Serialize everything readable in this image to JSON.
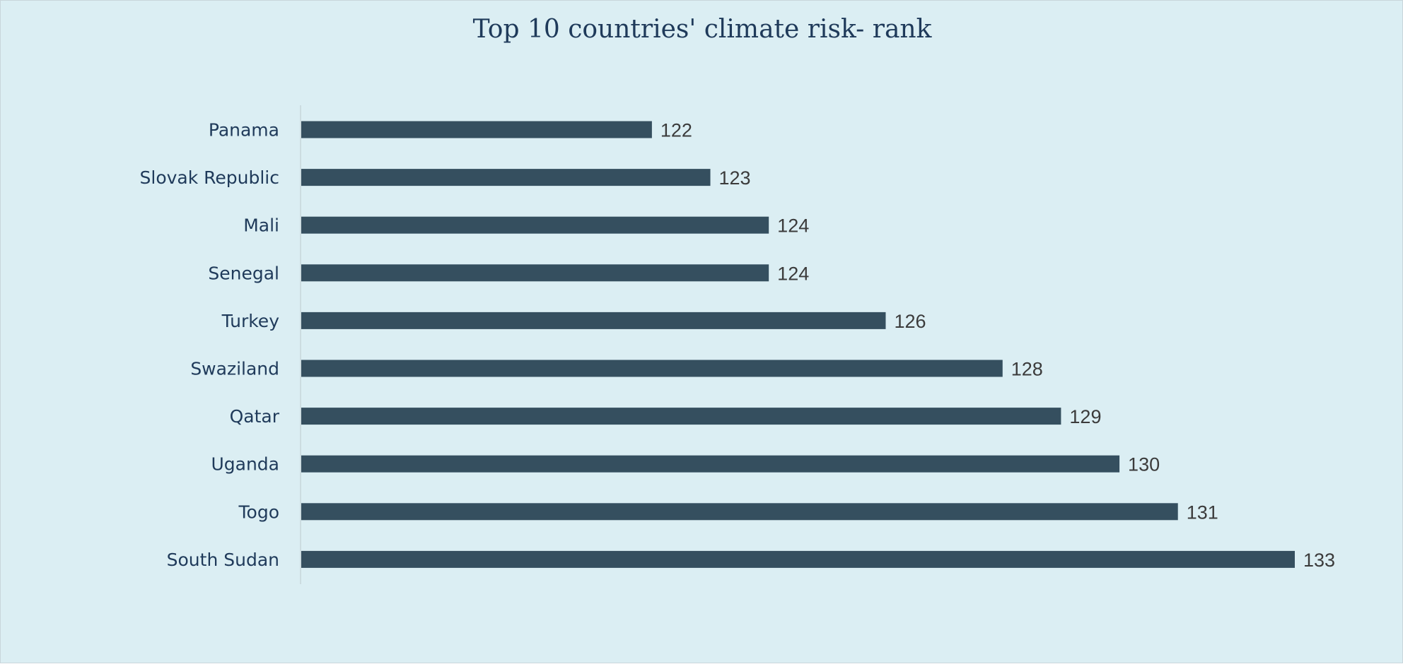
{
  "chart_data": {
    "type": "bar",
    "orientation": "horizontal",
    "title": "Top 10 countries' climate risk- rank",
    "categories": [
      "Panama",
      "Slovak Republic",
      "Mali",
      "Senegal",
      "Turkey",
      "Swaziland",
      "Qatar",
      "Uganda",
      "Togo",
      "South Sudan"
    ],
    "values": [
      122,
      123,
      124,
      124,
      126,
      128,
      129,
      130,
      131,
      133
    ],
    "xlim": [
      116,
      133
    ],
    "grid": false,
    "legend": "none",
    "data_labels": true,
    "colors": {
      "bar": "#354f5f",
      "background": "#dbeef3",
      "title": "#1f3a5a"
    }
  }
}
